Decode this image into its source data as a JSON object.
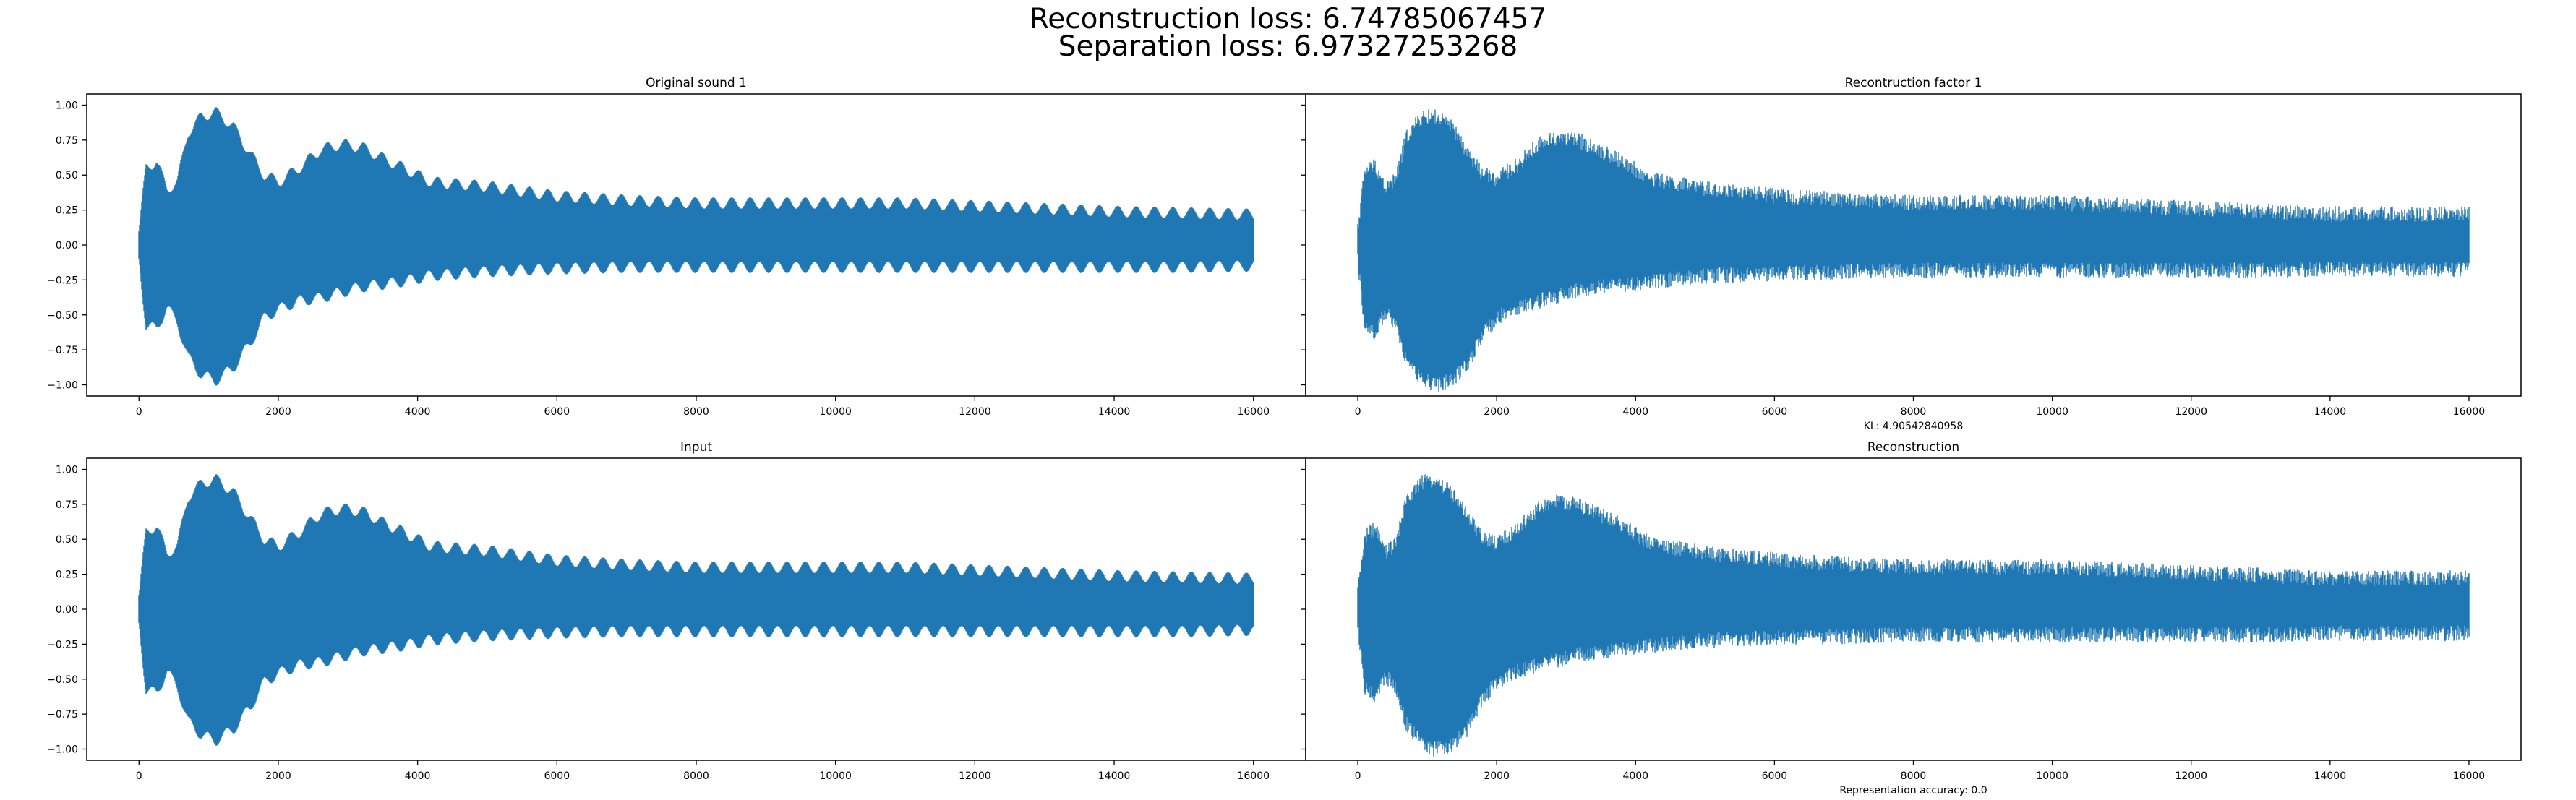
{
  "figure": {
    "suptitle": {
      "line1": "Reconstruction loss: 6.74785067457",
      "line2": "Separation loss: 6.97327253268"
    }
  },
  "chart_data": [
    {
      "type": "line",
      "title": "Original sound 1",
      "xlabel": "",
      "ylabel": "",
      "xlim": [
        -750,
        16750
      ],
      "ylim": [
        -1.08,
        1.08
      ],
      "xticks": [
        0,
        2000,
        4000,
        6000,
        8000,
        10000,
        12000,
        14000,
        16000
      ],
      "xtick_labels": [
        "0",
        "2000",
        "4000",
        "6000",
        "8000",
        "10000",
        "12000",
        "14000",
        "16000"
      ],
      "yticks": [
        1.0,
        0.75,
        0.5,
        0.25,
        0.0,
        -0.25,
        -0.5,
        -0.75,
        -1.0
      ],
      "ytick_labels": [
        "1.00",
        "0.75",
        "0.50",
        "0.25",
        "0.00",
        "−0.25",
        "−0.50",
        "−0.75",
        "−1.00"
      ],
      "grid": false,
      "series": [
        {
          "color": "#1f77b4",
          "noise": 0.0,
          "envelope_x": [
            0,
            100,
            250,
            400,
            550,
            700,
            900,
            1100,
            1350,
            1600,
            1800,
            2000,
            2300,
            2600,
            2900,
            3200,
            3500,
            3800,
            4200,
            5000,
            6000,
            7000,
            8000,
            9000,
            10000,
            11000,
            12000,
            13000,
            14000,
            15000,
            16000
          ],
          "envelope_upper": [
            0.1,
            0.55,
            0.6,
            0.4,
            0.45,
            0.8,
            0.92,
            0.95,
            0.85,
            0.65,
            0.5,
            0.45,
            0.55,
            0.68,
            0.72,
            0.7,
            0.62,
            0.55,
            0.45,
            0.42,
            0.35,
            0.32,
            0.3,
            0.3,
            0.3,
            0.3,
            0.28,
            0.26,
            0.24,
            0.23,
            0.22
          ],
          "envelope_lower": [
            -0.1,
            -0.58,
            -0.6,
            -0.45,
            -0.55,
            -0.8,
            -0.93,
            -0.97,
            -0.88,
            -0.7,
            -0.52,
            -0.46,
            -0.4,
            -0.38,
            -0.34,
            -0.3,
            -0.28,
            -0.26,
            -0.22,
            -0.19,
            -0.17,
            -0.16,
            -0.16,
            -0.16,
            -0.16,
            -0.16,
            -0.16,
            -0.16,
            -0.16,
            -0.16,
            -0.15
          ]
        }
      ]
    },
    {
      "type": "line",
      "title": "Recontruction factor 1",
      "xlabel": "KL: 4.90542840958",
      "ylabel": "",
      "xlim": [
        -750,
        16750
      ],
      "ylim": [
        -1.08,
        1.08
      ],
      "xticks": [
        0,
        2000,
        4000,
        6000,
        8000,
        10000,
        12000,
        14000,
        16000
      ],
      "xtick_labels": [
        "0",
        "2000",
        "4000",
        "6000",
        "8000",
        "10000",
        "12000",
        "14000",
        "16000"
      ],
      "yticks": [
        1.0,
        0.75,
        0.5,
        0.25,
        0.0,
        -0.25,
        -0.5,
        -0.75,
        -1.0
      ],
      "grid": false,
      "series": [
        {
          "color": "#1f77b4",
          "noise": 0.07,
          "envelope_x": [
            0,
            100,
            250,
            400,
            550,
            700,
            900,
            1100,
            1350,
            1600,
            1800,
            2000,
            2300,
            2600,
            2900,
            3200,
            3500,
            3800,
            4200,
            5000,
            6000,
            7000,
            8000,
            9000,
            10000,
            11000,
            12000,
            13000,
            14000,
            15000,
            16000
          ],
          "envelope_upper": [
            0.1,
            0.5,
            0.55,
            0.38,
            0.45,
            0.75,
            0.88,
            0.9,
            0.82,
            0.62,
            0.48,
            0.45,
            0.55,
            0.7,
            0.75,
            0.72,
            0.65,
            0.58,
            0.45,
            0.38,
            0.33,
            0.3,
            0.28,
            0.28,
            0.28,
            0.26,
            0.24,
            0.22,
            0.2,
            0.2,
            0.2
          ],
          "envelope_lower": [
            -0.1,
            -0.55,
            -0.6,
            -0.45,
            -0.55,
            -0.8,
            -0.92,
            -0.98,
            -0.95,
            -0.82,
            -0.62,
            -0.5,
            -0.42,
            -0.38,
            -0.34,
            -0.3,
            -0.28,
            -0.26,
            -0.24,
            -0.2,
            -0.18,
            -0.17,
            -0.16,
            -0.16,
            -0.16,
            -0.16,
            -0.16,
            -0.16,
            -0.15,
            -0.15,
            -0.15
          ]
        }
      ]
    },
    {
      "type": "line",
      "title": "Input",
      "xlabel": "",
      "ylabel": "",
      "xlim": [
        -750,
        16750
      ],
      "ylim": [
        -1.08,
        1.08
      ],
      "xticks": [
        0,
        2000,
        4000,
        6000,
        8000,
        10000,
        12000,
        14000,
        16000
      ],
      "xtick_labels": [
        "0",
        "2000",
        "4000",
        "6000",
        "8000",
        "10000",
        "12000",
        "14000",
        "16000"
      ],
      "yticks": [
        1.0,
        0.75,
        0.5,
        0.25,
        0.0,
        -0.25,
        -0.5,
        -0.75,
        -1.0
      ],
      "ytick_labels": [
        "1.00",
        "0.75",
        "0.50",
        "0.25",
        "0.00",
        "−0.25",
        "−0.50",
        "−0.75",
        "−1.00"
      ],
      "grid": false,
      "series": [
        {
          "color": "#1f77b4",
          "noise": 0.0,
          "envelope_x": [
            0,
            100,
            250,
            400,
            550,
            700,
            900,
            1100,
            1350,
            1600,
            1800,
            2000,
            2300,
            2600,
            2900,
            3200,
            3500,
            3800,
            4200,
            5000,
            6000,
            7000,
            8000,
            9000,
            10000,
            11000,
            12000,
            13000,
            14000,
            15000,
            16000
          ],
          "envelope_upper": [
            0.1,
            0.55,
            0.6,
            0.4,
            0.45,
            0.8,
            0.9,
            0.93,
            0.84,
            0.65,
            0.5,
            0.45,
            0.55,
            0.68,
            0.72,
            0.7,
            0.62,
            0.55,
            0.45,
            0.42,
            0.35,
            0.32,
            0.3,
            0.3,
            0.3,
            0.3,
            0.28,
            0.26,
            0.24,
            0.23,
            0.22
          ],
          "envelope_lower": [
            -0.1,
            -0.58,
            -0.6,
            -0.45,
            -0.55,
            -0.8,
            -0.9,
            -0.94,
            -0.86,
            -0.7,
            -0.52,
            -0.46,
            -0.4,
            -0.38,
            -0.34,
            -0.3,
            -0.28,
            -0.26,
            -0.22,
            -0.19,
            -0.17,
            -0.16,
            -0.16,
            -0.16,
            -0.16,
            -0.16,
            -0.16,
            -0.16,
            -0.16,
            -0.16,
            -0.15
          ]
        }
      ]
    },
    {
      "type": "line",
      "title": "Reconstruction",
      "xlabel": "Representation accuracy: 0.0",
      "ylabel": "",
      "xlim": [
        -750,
        16750
      ],
      "ylim": [
        -1.08,
        1.08
      ],
      "xticks": [
        0,
        2000,
        4000,
        6000,
        8000,
        10000,
        12000,
        14000,
        16000
      ],
      "xtick_labels": [
        "0",
        "2000",
        "4000",
        "6000",
        "8000",
        "10000",
        "12000",
        "14000",
        "16000"
      ],
      "yticks": [
        1.0,
        0.75,
        0.5,
        0.25,
        0.0,
        -0.25,
        -0.5,
        -0.75,
        -1.0
      ],
      "grid": false,
      "series": [
        {
          "color": "#1f77b4",
          "noise": 0.07,
          "envelope_x": [
            0,
            100,
            250,
            400,
            550,
            700,
            900,
            1100,
            1350,
            1600,
            1800,
            2000,
            2300,
            2600,
            2900,
            3200,
            3500,
            3800,
            4200,
            5000,
            6000,
            7000,
            8000,
            9000,
            10000,
            11000,
            12000,
            13000,
            14000,
            15000,
            16000
          ],
          "envelope_upper": [
            0.1,
            0.5,
            0.55,
            0.38,
            0.45,
            0.75,
            0.88,
            0.9,
            0.82,
            0.62,
            0.48,
            0.45,
            0.55,
            0.7,
            0.75,
            0.72,
            0.65,
            0.58,
            0.45,
            0.38,
            0.33,
            0.3,
            0.28,
            0.28,
            0.28,
            0.26,
            0.24,
            0.22,
            0.2,
            0.2,
            0.2
          ],
          "envelope_lower": [
            -0.1,
            -0.55,
            -0.6,
            -0.45,
            -0.55,
            -0.8,
            -0.92,
            -0.98,
            -0.95,
            -0.82,
            -0.62,
            -0.5,
            -0.42,
            -0.38,
            -0.34,
            -0.3,
            -0.28,
            -0.26,
            -0.24,
            -0.2,
            -0.18,
            -0.17,
            -0.16,
            -0.16,
            -0.16,
            -0.16,
            -0.16,
            -0.16,
            -0.15,
            -0.15,
            -0.15
          ]
        }
      ]
    }
  ]
}
